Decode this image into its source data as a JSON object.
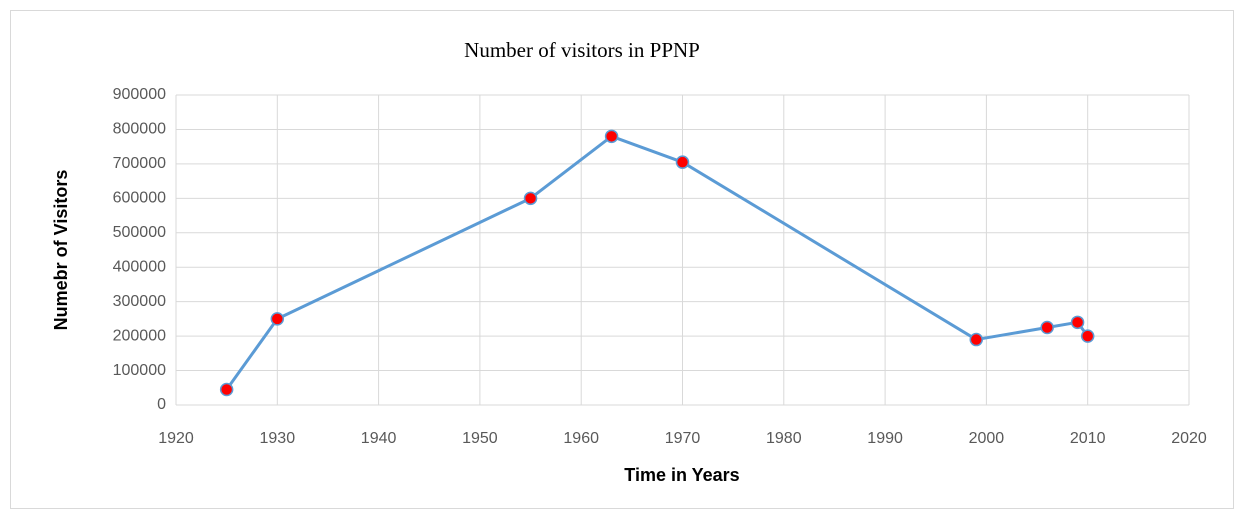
{
  "chart_data": {
    "type": "line",
    "title": "Number of visitors in PPNP",
    "xlabel": "Time in Years",
    "ylabel": "Numebr of Visitors",
    "x": [
      1925,
      1930,
      1955,
      1963,
      1970,
      1999,
      2006,
      2009,
      2010
    ],
    "values": [
      45000,
      250000,
      600000,
      780000,
      705000,
      190000,
      225000,
      240000,
      200000
    ],
    "color": "#5b9bd5",
    "marker_color": "#ff0000",
    "xlim": [
      1920,
      2020
    ],
    "xticks": [
      1920,
      1930,
      1940,
      1950,
      1960,
      1970,
      1980,
      1990,
      2000,
      2010,
      2020
    ],
    "ylim": [
      0,
      900000
    ],
    "yticks": [
      0,
      100000,
      200000,
      300000,
      400000,
      500000,
      600000,
      700000,
      800000,
      900000
    ],
    "grid": true
  }
}
